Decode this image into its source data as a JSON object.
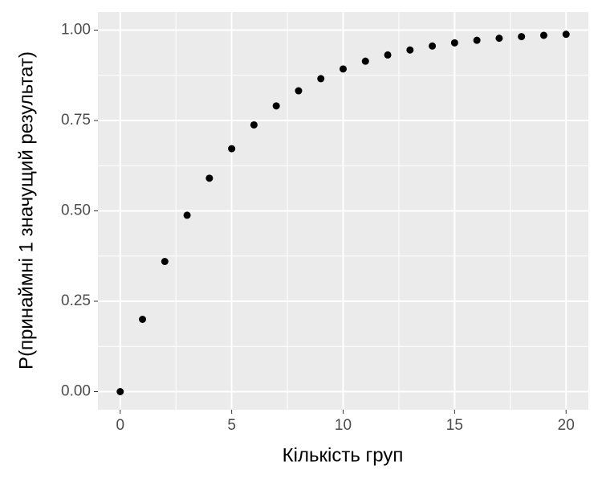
{
  "chart_data": {
    "type": "scatter",
    "x_label": "Кількість груп",
    "y_label": "P(принаймні 1 значущий результат)",
    "x": [
      0,
      1,
      2,
      3,
      4,
      5,
      6,
      7,
      8,
      9,
      10,
      11,
      12,
      13,
      14,
      15,
      16,
      17,
      18,
      19,
      20
    ],
    "values": [
      0,
      0.2,
      0.36,
      0.488,
      0.5904,
      0.672,
      0.7379,
      0.7903,
      0.8322,
      0.8658,
      0.8926,
      0.9141,
      0.9313,
      0.945,
      0.956,
      0.9648,
      0.9719,
      0.9775,
      0.982,
      0.9856,
      0.9885
    ],
    "color": "#000000",
    "xlim": [
      -1,
      21
    ],
    "xticks": [
      0,
      5,
      10,
      15,
      20
    ],
    "ylim": [
      -0.05,
      1.05
    ],
    "yticks": [
      {
        "value": 0,
        "label": "0.00"
      },
      {
        "value": 0.25,
        "label": "0.25"
      },
      {
        "value": 0.5,
        "label": "0.50"
      },
      {
        "value": 0.75,
        "label": "0.75"
      },
      {
        "value": 1,
        "label": "1.00"
      }
    ],
    "grid": true,
    "minor_grid": true
  }
}
